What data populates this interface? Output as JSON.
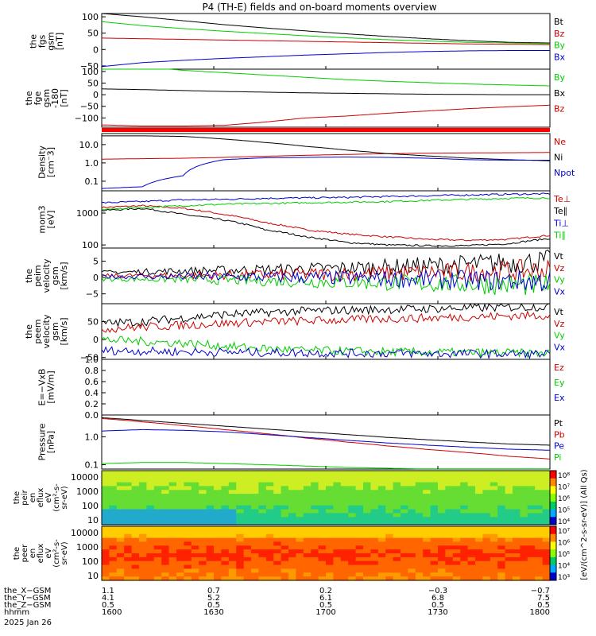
{
  "title": "P4 (TH-E) fields and on-board moments overview",
  "chart_data": {
    "type": "line",
    "x_ticks": [
      "1600",
      "1630",
      "1700",
      "1730",
      "1800"
    ],
    "x_range": [
      1600,
      1800
    ],
    "panels": [
      {
        "ylabel": [
          "the",
          "fgs",
          "gsm",
          "[nT]"
        ],
        "yticks": [
          "100",
          "50",
          "0",
          "−50"
        ],
        "yrange": [
          -60,
          110
        ],
        "series": [
          {
            "name": "Bt",
            "color": "#000000",
            "values": [
              110,
              100,
              88,
              76,
              66,
              57,
              48,
              40,
              33,
              27,
              22,
              20
            ]
          },
          {
            "name": "Bz",
            "color": "#cc0000",
            "values": [
              35,
              33,
              31,
              29,
              27,
              25,
              23,
              21,
              19,
              17,
              16,
              15
            ]
          },
          {
            "name": "By",
            "color": "#00cc00",
            "values": [
              85,
              73,
              64,
              56,
              49,
              42,
              36,
              30,
              26,
              22,
              20,
              18
            ]
          },
          {
            "name": "Bx",
            "color": "#0000cc",
            "values": [
              -52,
              -40,
              -33,
              -27,
              -22,
              -17,
              -13,
              -9,
              -6,
              -4,
              -3,
              -3
            ]
          }
        ]
      },
      {
        "ylabel": [
          "the",
          "fge",
          "gsm",
          "-180",
          "[nT]"
        ],
        "yticks": [
          "100",
          "50",
          "0",
          "−50",
          "−100"
        ],
        "yrange": [
          -140,
          110
        ],
        "series": [
          {
            "name": "By",
            "color": "#00cc00",
            "values": [
              130,
              120,
              105,
              95,
              85,
              75,
              65,
              58,
              52,
              46,
              42,
              38
            ]
          },
          {
            "name": "Bx",
            "color": "#000000",
            "values": [
              25,
              22,
              18,
              14,
              11,
              8,
              6,
              4,
              2,
              1,
              0,
              0
            ]
          },
          {
            "name": "Bz",
            "color": "#cc0000",
            "values": [
              -130,
              -135,
              -135,
              -132,
              -118,
              -100,
              -92,
              -80,
              -70,
              -60,
              -52,
              -45
            ]
          }
        ]
      },
      {
        "ylabel": [
          "Density",
          "[cm⁻3]"
        ],
        "yticks": [
          "10.0",
          "1.0",
          "0.1"
        ],
        "yrange": [
          0.03,
          40
        ],
        "log": true,
        "series": [
          {
            "name": "Ne",
            "color": "#cc0000",
            "values": [
              1.6,
              1.7,
              1.8,
              2,
              2.3,
              2.6,
              2.9,
              3.2,
              3.4,
              3.5,
              3.6,
              3.7
            ]
          },
          {
            "name": "Ni",
            "color": "#000000",
            "values": [
              30,
              30,
              28,
              20,
              13,
              8,
              5,
              3.2,
              2.4,
              1.8,
              1.5,
              1.3
            ]
          },
          {
            "name": "Npot",
            "color": "#0000cc",
            "values": [
              0.04,
              0.05,
              0.2,
              1.5,
              1.9,
              2.0,
              2.1,
              2.0,
              1.8,
              1.5,
              1.4,
              1.4
            ]
          }
        ]
      },
      {
        "ylabel": [
          "mom3",
          "[eV]"
        ],
        "yticks": [
          "1000",
          "100"
        ],
        "yrange": [
          80,
          5000
        ],
        "log": true,
        "series": [
          {
            "name": "Te⊥",
            "color": "#cc0000",
            "values": [
              1500,
              1700,
              1400,
              900,
              500,
              300,
              220,
              180,
              150,
              140,
              150,
              200
            ]
          },
          {
            "name": "Te∥",
            "color": "#000000",
            "values": [
              1200,
              1400,
              900,
              600,
              300,
              180,
              120,
              100,
              95,
              95,
              110,
              160
            ]
          },
          {
            "name": "Ti⊥",
            "color": "#0000cc",
            "values": [
              2100,
              2300,
              2600,
              2700,
              2900,
              3000,
              3100,
              3300,
              3500,
              3700,
              3900,
              4000
            ]
          },
          {
            "name": "Ti∥",
            "color": "#00cc00",
            "values": [
              1300,
              1500,
              1700,
              1900,
              2000,
              2100,
              2200,
              2300,
              2500,
              2700,
              2900,
              3000
            ]
          }
        ]
      },
      {
        "ylabel": [
          "the",
          "peim",
          "velocity",
          "gsm",
          "[km/s]"
        ],
        "yticks": [
          "5",
          "0",
          "−5"
        ],
        "yrange": [
          -8,
          9
        ],
        "series": [
          {
            "name": "Vt",
            "color": "#000000",
            "values": [
              1.5,
              1.8,
              2,
              2.2,
              2.4,
              2.6,
              2.9,
              3.2,
              3.6,
              4,
              4.5,
              5
            ]
          },
          {
            "name": "Vz",
            "color": "#cc0000",
            "values": [
              0.5,
              0.6,
              0.6,
              0.7,
              0.8,
              1,
              1.1,
              1.3,
              1.5,
              1.7,
              2,
              2.2
            ]
          },
          {
            "name": "Vy",
            "color": "#00cc00",
            "values": [
              -0.5,
              -0.5,
              -0.6,
              -0.8,
              -1,
              -1.2,
              -1.4,
              -1.6,
              -1.8,
              -2,
              -2.2,
              -2.5
            ]
          },
          {
            "name": "Vx",
            "color": "#0000cc",
            "values": [
              0.3,
              0.3,
              0.2,
              0.2,
              0.1,
              0,
              -0.2,
              -0.4,
              -0.6,
              -0.8,
              -1,
              -1.2
            ]
          }
        ]
      },
      {
        "ylabel": [
          "the",
          "peem",
          "velocity",
          "gsm",
          "[km/s]"
        ],
        "yticks": [
          "50",
          "0",
          "−50"
        ],
        "yrange": [
          -55,
          100
        ],
        "series": [
          {
            "name": "Vt",
            "color": "#000000",
            "values": [
              45,
              50,
              60,
              70,
              75,
              80,
              82,
              84,
              86,
              88,
              90,
              92
            ]
          },
          {
            "name": "Vz",
            "color": "#cc0000",
            "values": [
              30,
              35,
              40,
              45,
              50,
              52,
              55,
              58,
              60,
              63,
              66,
              68
            ]
          },
          {
            "name": "Vy",
            "color": "#00cc00",
            "values": [
              0,
              -5,
              -10,
              -18,
              -25,
              -30,
              -32,
              -34,
              -35,
              -36,
              -37,
              -38
            ]
          },
          {
            "name": "Vx",
            "color": "#0000cc",
            "values": [
              -30,
              -32,
              -34,
              -35,
              -36,
              -37,
              -38,
              -38,
              -39,
              -39,
              -40,
              -40
            ]
          }
        ]
      },
      {
        "ylabel": [
          "E=−VxB",
          "[mV/m]"
        ],
        "yticks": [
          "1.0",
          "0.8",
          "0.6",
          "0.4",
          "0.2",
          "0.0"
        ],
        "yrange": [
          0,
          1
        ],
        "legend": [
          {
            "name": "Ez",
            "color": "#cc0000"
          },
          {
            "name": "Ey",
            "color": "#00cc00"
          },
          {
            "name": "Ex",
            "color": "#0000cc"
          }
        ],
        "series": []
      },
      {
        "ylabel": [
          "Pressure",
          "[nPa]"
        ],
        "yticks": [
          "1.0",
          "0.1"
        ],
        "yrange": [
          0.07,
          6
        ],
        "log": true,
        "series": [
          {
            "name": "Pt",
            "color": "#000000",
            "values": [
              4.8,
              3.8,
              3.0,
              2.4,
              1.9,
              1.5,
              1.2,
              0.95,
              0.78,
              0.65,
              0.55,
              0.5
            ]
          },
          {
            "name": "Pb",
            "color": "#cc0000",
            "values": [
              4.5,
              3.4,
              2.5,
              1.8,
              1.3,
              0.9,
              0.65,
              0.47,
              0.35,
              0.27,
              0.2,
              0.16
            ]
          },
          {
            "name": "Pe",
            "color": "#0000cc",
            "values": [
              1.6,
              1.8,
              1.7,
              1.5,
              1.2,
              0.95,
              0.75,
              0.6,
              0.5,
              0.42,
              0.36,
              0.33
            ]
          },
          {
            "name": "Pi",
            "color": "#00cc00",
            "values": [
              0.11,
              0.12,
              0.12,
              0.11,
              0.1,
              0.09,
              0.08,
              0.075,
              0.07,
              0.07,
              0.07,
              0.07
            ]
          }
        ]
      }
    ],
    "spectrograms": [
      {
        "ylabel": [
          "the",
          "peir",
          "en",
          "eflux",
          "eV",
          "(cm²-s-",
          "sr-eV)"
        ],
        "yticks": [
          "10000",
          "1000",
          "100",
          "10"
        ],
        "cbar_ticks": [
          "10⁸",
          "10⁷",
          "10⁶",
          "10⁵",
          "10⁴"
        ]
      },
      {
        "ylabel": [
          "the",
          "peer",
          "en",
          "eflux",
          "eV",
          "(cm²-s-",
          "sr-eV)"
        ],
        "yticks": [
          "10000",
          "1000",
          "100",
          "10"
        ],
        "cbar_ticks": [
          "10⁷",
          "10⁶",
          "10⁵",
          "10⁴",
          "10³"
        ]
      }
    ],
    "colorbar_label": "[eV/(cm^2-s-sr-eV)] (All Qs)",
    "ephemeris": {
      "rows": [
        {
          "label": "the_X−GSM",
          "values": [
            "1.1",
            "0.7",
            "0.2",
            "−0.3",
            "−0.7"
          ]
        },
        {
          "label": "the_Y−GSM",
          "values": [
            "4.1",
            "5.2",
            "6.1",
            "6.8",
            "7.5"
          ]
        },
        {
          "label": "the_Z−GSM",
          "values": [
            "0.5",
            "0.5",
            "0.5",
            "0.5",
            "0.5"
          ]
        },
        {
          "label": "hhmm",
          "values": [
            "1600",
            "1630",
            "1700",
            "1730",
            "1800"
          ]
        }
      ],
      "date": "2025 Jan 26"
    }
  }
}
